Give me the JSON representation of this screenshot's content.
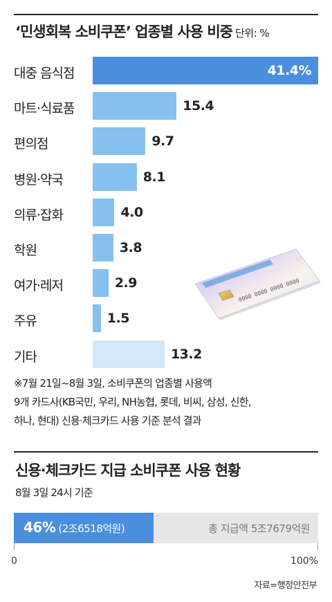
{
  "header": {
    "title": "‘민생회복 소비쿠폰’ 업종별 사용 비중",
    "unit": "단위: %"
  },
  "chart_data": {
    "type": "bar",
    "orientation": "horizontal",
    "title": "‘민생회복 소비쿠폰’ 업종별 사용 비중",
    "unit": "단위: %",
    "categories": [
      "대중 음식점",
      "마트·식료품",
      "편의점",
      "병원·약국",
      "의류·잡화",
      "학원",
      "여가·레저",
      "주유",
      "기타"
    ],
    "values": [
      41.4,
      15.4,
      9.7,
      8.1,
      4.0,
      3.8,
      2.9,
      1.5,
      13.2
    ],
    "value_labels": [
      "41.4%",
      "15.4",
      "9.7",
      "8.1",
      "4.0",
      "3.8",
      "2.9",
      "1.5",
      "13.2"
    ],
    "xlim": [
      0,
      41.4
    ],
    "colors": {
      "top": "#4a8fdd",
      "default": "#85c0ef",
      "other": "#d3e8f8"
    }
  },
  "note": {
    "lines": [
      "※7월 21일~8월 3일, 소비쿠폰의 업종별 사용액",
      "9개 카드사(KB국민, 우리, NH농협, 롯데, 비씨, 삼성, 신한,",
      "하나, 현대) 신용·체크카드 사용 기준 분석 결과"
    ]
  },
  "card_image": {
    "icon": "credit-card-icon",
    "number_text": "0000 0000 0000 0000"
  },
  "section2": {
    "title": "신용·체크카드 지급 소비쿠폰 사용 현황",
    "subtitle": "8월 3일 24시 기준",
    "percent": 46,
    "percent_label": "46%",
    "amount_label": "(2조6518억원)",
    "total_label": "총 지급액 5조7679억원",
    "axis_min_label": "0",
    "axis_max_label": "100%",
    "fill_color": "#4a8fdd",
    "track_color": "#e6e6e6"
  },
  "source": "자료=행정안전부"
}
